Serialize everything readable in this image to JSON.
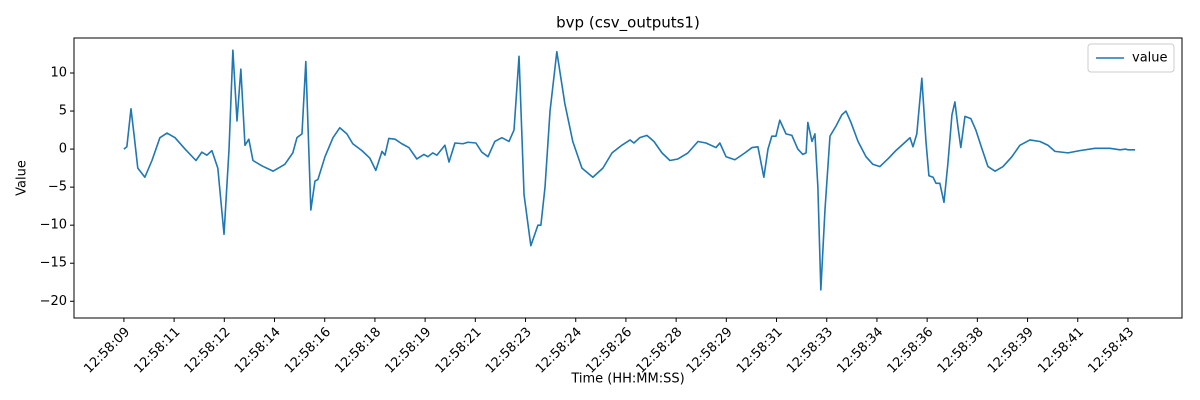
{
  "chart_data": {
    "type": "line",
    "title": "bvp (csv_outputs1)",
    "x_label": "Time (HH:MM:SS)",
    "y_label": "Value",
    "x": [
      9.0,
      9.1,
      9.24,
      9.34,
      9.47,
      9.71,
      9.95,
      10.22,
      10.46,
      10.73,
      11.07,
      11.44,
      11.64,
      11.81,
      11.98,
      12.18,
      12.39,
      12.56,
      12.69,
      12.83,
      12.96,
      13.1,
      13.23,
      13.37,
      13.67,
      14.05,
      14.45,
      14.72,
      14.86,
      15.03,
      15.16,
      15.33,
      15.47,
      15.57,
      15.81,
      16.08,
      16.31,
      16.55,
      16.75,
      17.06,
      17.33,
      17.53,
      17.74,
      17.84,
      17.97,
      18.18,
      18.41,
      18.65,
      18.92,
      19.16,
      19.29,
      19.46,
      19.6,
      19.87,
      20.01,
      20.21,
      20.48,
      20.65,
      20.92,
      21.12,
      21.33,
      21.56,
      21.8,
      22.04,
      22.21,
      22.38,
      22.55,
      22.78,
      23.02,
      23.12,
      23.26,
      23.43,
      23.66,
      23.93,
      24.2,
      24.51,
      24.88,
      25.22,
      25.53,
      25.86,
      26.14,
      26.27,
      26.47,
      26.71,
      26.95,
      27.22,
      27.49,
      27.76,
      28.1,
      28.44,
      28.71,
      29.05,
      29.18,
      29.39,
      29.69,
      30.03,
      30.27,
      30.47,
      30.67,
      30.81,
      30.94,
      31.08,
      31.21,
      31.42,
      31.62,
      31.82,
      31.99,
      32.1,
      32.16,
      32.3,
      32.4,
      32.5,
      32.6,
      32.74,
      32.91,
      33.11,
      33.31,
      33.45,
      33.62,
      33.86,
      34.13,
      34.36,
      34.6,
      34.87,
      35.14,
      35.48,
      35.62,
      35.72,
      35.85,
      36.02,
      36.16,
      36.26,
      36.4,
      36.5,
      36.63,
      36.77,
      36.9,
      37.04,
      37.14,
      37.24,
      37.34,
      37.48,
      37.68,
      37.85,
      38.06,
      38.26,
      38.5,
      38.77,
      39.07,
      39.34,
      39.68,
      40.02,
      40.29,
      40.53,
      40.97,
      41.37,
      41.88,
      42.39,
      42.73,
      42.93,
      43.0,
      43.24
    ],
    "series": [
      {
        "name": "value",
        "color": "#1f77b4",
        "values": [
          0,
          0.3,
          5.3,
          2,
          -2.5,
          -3.7,
          -1.5,
          1.5,
          2.1,
          1.5,
          0,
          -1.5,
          -0.4,
          -0.8,
          -0.2,
          -2.5,
          -11.2,
          0,
          13,
          3.7,
          10.5,
          0.5,
          1.3,
          -1.5,
          -2.2,
          -2.9,
          -2,
          -0.5,
          1.5,
          2,
          11.5,
          -8,
          -4.2,
          -4,
          -1,
          1.5,
          2.8,
          2,
          0.7,
          -0.2,
          -1.2,
          -2.8,
          -0.3,
          -0.8,
          1.4,
          1.3,
          0.7,
          0.2,
          -1.3,
          -0.7,
          -1,
          -0.5,
          -0.8,
          0.5,
          -1.7,
          0.8,
          0.7,
          0.9,
          0.8,
          -0.4,
          -1,
          1,
          1.5,
          1,
          2.5,
          12.2,
          -6,
          -12.7,
          -10,
          -10,
          -5,
          5,
          12.8,
          6,
          1,
          -2.5,
          -3.7,
          -2.5,
          -0.5,
          0.5,
          1.2,
          0.8,
          1.5,
          1.8,
          1,
          -0.5,
          -1.5,
          -1.3,
          -0.5,
          1,
          0.8,
          0.2,
          0.8,
          -1,
          -1.4,
          -0.5,
          0.2,
          0.3,
          -3.7,
          0,
          1.7,
          1.7,
          3.8,
          2,
          1.8,
          0,
          -0.7,
          -0.5,
          3.5,
          1,
          2,
          -5,
          -18.5,
          -8,
          1.7,
          3,
          4.5,
          5,
          3.5,
          1,
          -1,
          -2,
          -2.3,
          -1.3,
          -0.2,
          1,
          1.5,
          0.3,
          2,
          9.3,
          1,
          -3.5,
          -3.7,
          -4.5,
          -4.5,
          -7,
          -2,
          4.5,
          6.2,
          3,
          0.2,
          4.3,
          4,
          2.5,
          0,
          -2.3,
          -2.9,
          -2.3,
          -1,
          0.5,
          1.2,
          1,
          0.5,
          -0.3,
          -0.5,
          -0.2,
          0.1,
          0.1,
          -0.1,
          0,
          -0.1,
          -0.1
        ]
      }
    ],
    "xlim": [
      7.31,
      44.83
    ],
    "xticks": [
      {
        "value": 9.0,
        "label": "12:58:09"
      },
      {
        "value": 10.7,
        "label": "12:58:11"
      },
      {
        "value": 12.4,
        "label": "12:58:12"
      },
      {
        "value": 14.1,
        "label": "12:58:14"
      },
      {
        "value": 15.8,
        "label": "12:58:16"
      },
      {
        "value": 17.5,
        "label": "12:58:18"
      },
      {
        "value": 19.2,
        "label": "12:58:19"
      },
      {
        "value": 20.9,
        "label": "12:58:21"
      },
      {
        "value": 22.6,
        "label": "12:58:23"
      },
      {
        "value": 24.3,
        "label": "12:58:24"
      },
      {
        "value": 26.0,
        "label": "12:58:26"
      },
      {
        "value": 27.7,
        "label": "12:58:28"
      },
      {
        "value": 29.4,
        "label": "12:58:29"
      },
      {
        "value": 31.1,
        "label": "12:58:31"
      },
      {
        "value": 32.8,
        "label": "12:58:33"
      },
      {
        "value": 34.5,
        "label": "12:58:34"
      },
      {
        "value": 36.2,
        "label": "12:58:36"
      },
      {
        "value": 37.9,
        "label": "12:58:38"
      },
      {
        "value": 39.6,
        "label": "12:58:39"
      },
      {
        "value": 41.3,
        "label": "12:58:41"
      },
      {
        "value": 43.0,
        "label": "12:58:43"
      }
    ],
    "ylim": [
      -22.2,
      14.6
    ],
    "yticks": [
      {
        "value": -20,
        "label": "−20"
      },
      {
        "value": -15,
        "label": "−15"
      },
      {
        "value": -10,
        "label": "−10"
      },
      {
        "value": -5,
        "label": "−5"
      },
      0,
      5,
      10
    ],
    "grid": false,
    "legend": "upper right"
  }
}
